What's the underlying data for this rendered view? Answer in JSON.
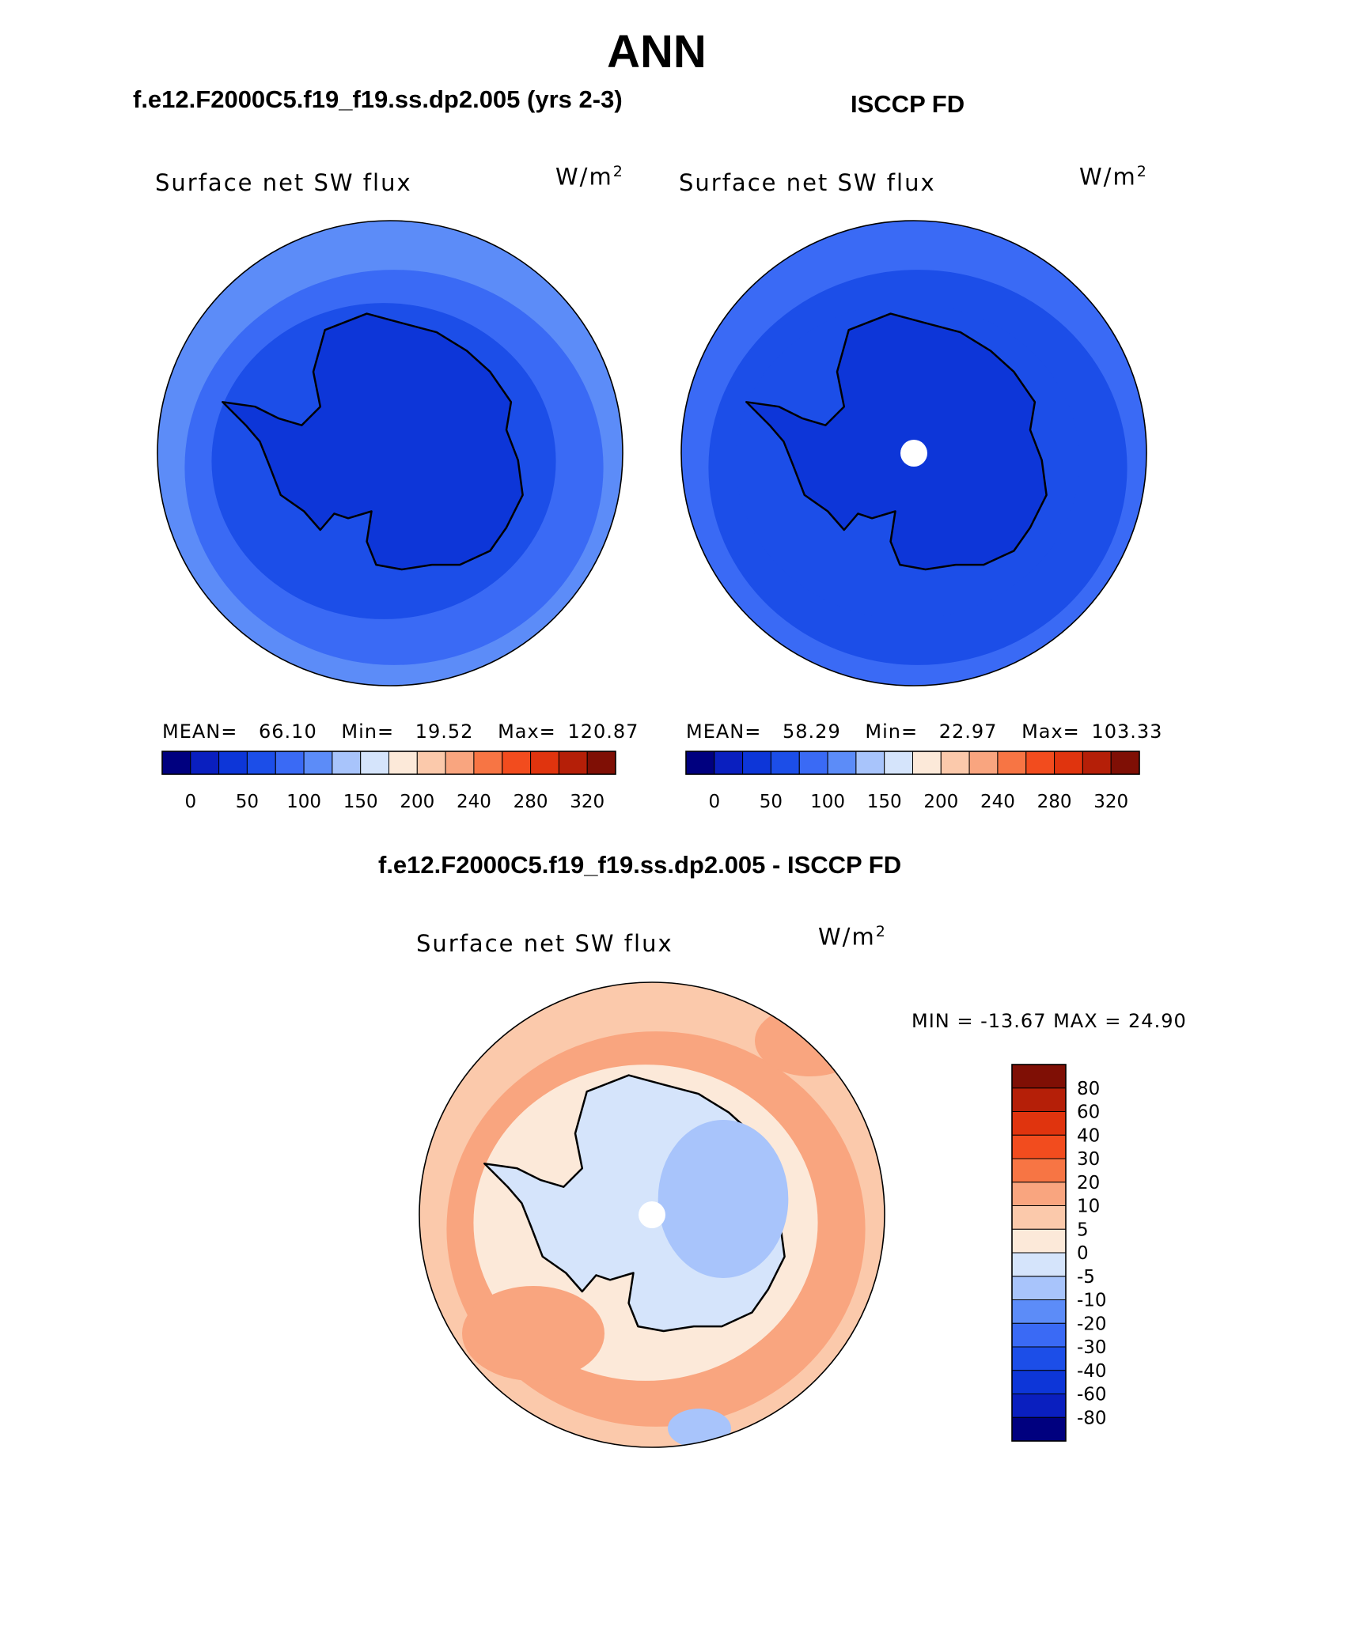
{
  "figure": {
    "title": "ANN",
    "panel_a_title": "f.e12.F2000C5.f19_f19.ss.dp2.005 (yrs 2-3)",
    "panel_b_title": "ISCCP FD",
    "panel_c_title": "f.e12.F2000C5.f19_f19.ss.dp2.005 - ISCCP FD"
  },
  "colors": {
    "abs_scale": [
      "#00007f",
      "#0a1fbf",
      "#0d36d8",
      "#1c4ee8",
      "#3a6af5",
      "#5c8cf8",
      "#a8c4fb",
      "#d5e4fb",
      "#fce9d9",
      "#fbc9ab",
      "#f9a57f",
      "#f77544",
      "#f24c1e",
      "#e0340e",
      "#b51f08",
      "#7f0f05"
    ],
    "diff_scale": [
      "#00007f",
      "#0a1fbf",
      "#0d36d8",
      "#1c4ee8",
      "#3a6af5",
      "#5c8cf8",
      "#a8c4fb",
      "#d5e4fb",
      "#fce9d9",
      "#fbc9ab",
      "#f9a57f",
      "#f77544",
      "#f24c1e",
      "#e0340e",
      "#b51f08",
      "#7f0f05"
    ]
  },
  "chart_data": [
    {
      "type": "heatmap",
      "projection": "south-polar-stereographic",
      "case": "f.e12.F2000C5.f19_f19.ss.dp2.005 (yrs 2-3)",
      "variable": "Surface net SW flux",
      "units_text": "W/m",
      "units_exp": "2",
      "stats": {
        "mean_label": "MEAN=",
        "mean": "66.10",
        "min_label": "Min=",
        "min": "19.52",
        "max_label": "Max=",
        "max": "120.87"
      },
      "colorbar_ticks": [
        "0",
        "50",
        "100",
        "150",
        "200",
        "240",
        "280",
        "320"
      ],
      "field_levels": {
        "outer": "#5c8cf8",
        "mid": "#3a6af5",
        "inner": "#1c4ee8",
        "land": "#0d36d8"
      }
    },
    {
      "type": "heatmap",
      "projection": "south-polar-stereographic",
      "case": "ISCCP FD",
      "variable": "Surface net SW flux",
      "units_text": "W/m",
      "units_exp": "2",
      "stats": {
        "mean_label": "MEAN=",
        "mean": "58.29",
        "min_label": "Min=",
        "min": "22.97",
        "max_label": "Max=",
        "max": "103.33"
      },
      "colorbar_ticks": [
        "0",
        "50",
        "100",
        "150",
        "200",
        "240",
        "280",
        "320"
      ],
      "field_levels": {
        "outer": "#3a6af5",
        "mid": "#1c4ee8",
        "inner": "#1c4ee8",
        "land": "#0d36d8"
      }
    },
    {
      "type": "heatmap",
      "projection": "south-polar-stereographic",
      "case": "f.e12.F2000C5.f19_f19.ss.dp2.005 - ISCCP FD",
      "variable": "Surface net SW flux",
      "units_text": "W/m",
      "units_exp": "2",
      "stats": {
        "label": "MIN = -13.67 MAX =  24.90",
        "min": -13.67,
        "max": 24.9
      },
      "colorbar_levels": [
        "80",
        "60",
        "40",
        "30",
        "20",
        "10",
        "5",
        "0",
        "-5",
        "-10",
        "-20",
        "-30",
        "-40",
        "-60",
        "-80"
      ],
      "field_levels": {
        "outer": "#fbc9ab",
        "mid": "#f9a57f",
        "inner": "#fce9d9",
        "land": "#d5e4fb",
        "interior": "#a8c4fb"
      }
    }
  ]
}
